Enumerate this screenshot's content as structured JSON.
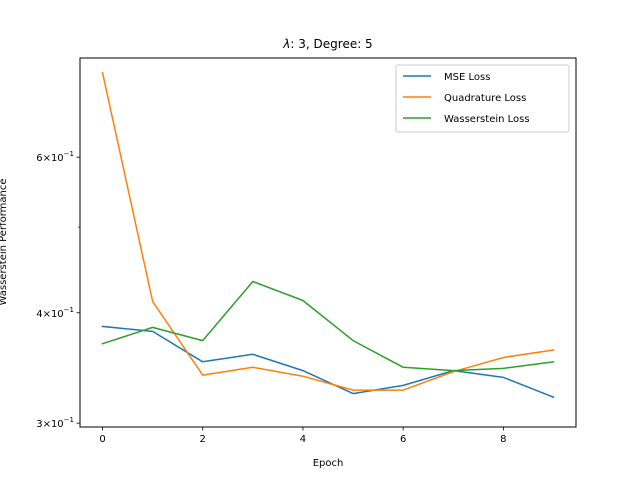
{
  "chart_data": {
    "type": "line",
    "title_prefix": "λ",
    "title_suffix": ": 3, Degree: 5",
    "xlabel": "Epoch",
    "ylabel": "Wasserstein Performance",
    "yscale": "log",
    "xlim": [
      -0.45,
      9.45
    ],
    "ylim": [
      0.297,
      0.777
    ],
    "x": [
      0,
      1,
      2,
      3,
      4,
      5,
      6,
      7,
      8,
      9
    ],
    "xticks": [
      0,
      2,
      4,
      6,
      8
    ],
    "xtick_labels": [
      "0",
      "2",
      "4",
      "6",
      "8"
    ],
    "yticks": [
      {
        "value": 0.3,
        "mantissa": "3",
        "exponent": "−1"
      },
      {
        "value": 0.4,
        "mantissa": "4",
        "exponent": "−1"
      },
      {
        "value": 0.6,
        "mantissa": "6",
        "exponent": "−1"
      }
    ],
    "yminor_ticks": [
      0.5
    ],
    "legend_position": "top-right",
    "grid": false,
    "series": [
      {
        "name": "MSE Loss",
        "color": "#1f77b4",
        "values": [
          0.386,
          0.381,
          0.352,
          0.359,
          0.344,
          0.324,
          0.331,
          0.344,
          0.338,
          0.321
        ]
      },
      {
        "name": "Quadrature Loss",
        "color": "#ff7f0e",
        "values": [
          0.748,
          0.412,
          0.34,
          0.347,
          0.339,
          0.327,
          0.327,
          0.343,
          0.356,
          0.363
        ]
      },
      {
        "name": "Wasserstein Loss",
        "color": "#2ca02c",
        "values": [
          0.369,
          0.385,
          0.372,
          0.434,
          0.413,
          0.372,
          0.347,
          0.344,
          0.346,
          0.352
        ]
      }
    ]
  }
}
